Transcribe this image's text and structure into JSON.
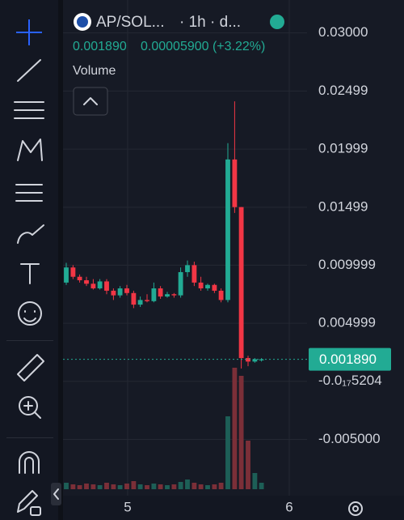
{
  "header": {
    "symbol": "AP/SOL...",
    "interval": "· 1h · d...",
    "price": "0.001890",
    "change": "0.00005900 (+3.22%)",
    "indicator": "Volume"
  },
  "chart_data": {
    "type": "candlestick",
    "x": [
      4.62,
      4.662,
      4.703,
      4.745,
      4.787,
      4.828,
      4.87,
      4.912,
      4.953,
      4.995,
      5.037,
      5.078,
      5.12,
      5.162,
      5.203,
      5.245,
      5.287,
      5.328,
      5.37,
      5.412,
      5.453,
      5.495,
      5.537,
      5.578,
      5.62,
      5.662,
      5.703,
      5.745,
      5.787,
      5.828
    ],
    "open": [
      0.0085,
      0.0098,
      0.009,
      0.0087,
      0.0084,
      0.008,
      0.0086,
      0.0078,
      0.0074,
      0.008,
      0.0076,
      0.0066,
      0.007,
      0.0069,
      0.008,
      0.0073,
      0.0075,
      0.0074,
      0.0094,
      0.01,
      0.0085,
      0.008,
      0.0083,
      0.0078,
      0.007,
      0.0191,
      0.015,
      0.002,
      0.0017,
      0.0018
    ],
    "high": [
      0.0102,
      0.01,
      0.0092,
      0.009,
      0.0088,
      0.0088,
      0.0088,
      0.008,
      0.0082,
      0.0083,
      0.0078,
      0.0073,
      0.0075,
      0.0085,
      0.0082,
      0.0077,
      0.0076,
      0.0098,
      0.0104,
      0.0103,
      0.009,
      0.0084,
      0.0084,
      0.008,
      0.0205,
      0.0241,
      0.015,
      0.0022,
      0.002,
      0.002
    ],
    "low": [
      0.0083,
      0.0088,
      0.0085,
      0.0082,
      0.0079,
      0.0079,
      0.0075,
      0.007,
      0.0072,
      0.0074,
      0.0063,
      0.0064,
      0.0068,
      0.0068,
      0.0071,
      0.0072,
      0.0072,
      0.0072,
      0.009,
      0.0082,
      0.0078,
      0.0078,
      0.0076,
      0.0068,
      0.0068,
      0.0145,
      0.0011,
      0.0013,
      0.0016,
      0.0017
    ],
    "close": [
      0.0098,
      0.009,
      0.0087,
      0.0084,
      0.008,
      0.0086,
      0.0078,
      0.0074,
      0.008,
      0.0076,
      0.0066,
      0.007,
      0.0069,
      0.008,
      0.0073,
      0.0075,
      0.0074,
      0.0094,
      0.01,
      0.0085,
      0.008,
      0.0083,
      0.0078,
      0.007,
      0.0191,
      0.015,
      0.002,
      0.0017,
      0.0019,
      0.00189
    ],
    "volume": [
      8,
      6,
      5,
      7,
      6,
      5,
      8,
      6,
      5,
      7,
      10,
      6,
      5,
      7,
      6,
      5,
      6,
      9,
      12,
      8,
      6,
      5,
      6,
      8,
      90,
      150,
      140,
      60,
      20,
      8
    ],
    "vlim": [
      0,
      160
    ],
    "up_color": "#22ab94",
    "down_color": "#f23645",
    "up_volume_color": "#1d5f57",
    "down_volume_color": "#7b2f38",
    "ylim": [
      -0.00985,
      0.03283
    ],
    "yticks": [
      {
        "value": 0.03,
        "label": "0.03000"
      },
      0.02499,
      0.01999,
      0.01499,
      0.009999,
      0.004999,
      {
        "value": -5.204e-17,
        "label": "-0.0₁₇5204"
      },
      {
        "value": -0.005,
        "label": "-0.005000"
      }
    ],
    "xlim": [
      4.6,
      6.11
    ],
    "xticks": [
      5,
      6
    ],
    "grid": true,
    "last_price": {
      "value": 0.00189,
      "label": "0.001890"
    }
  }
}
